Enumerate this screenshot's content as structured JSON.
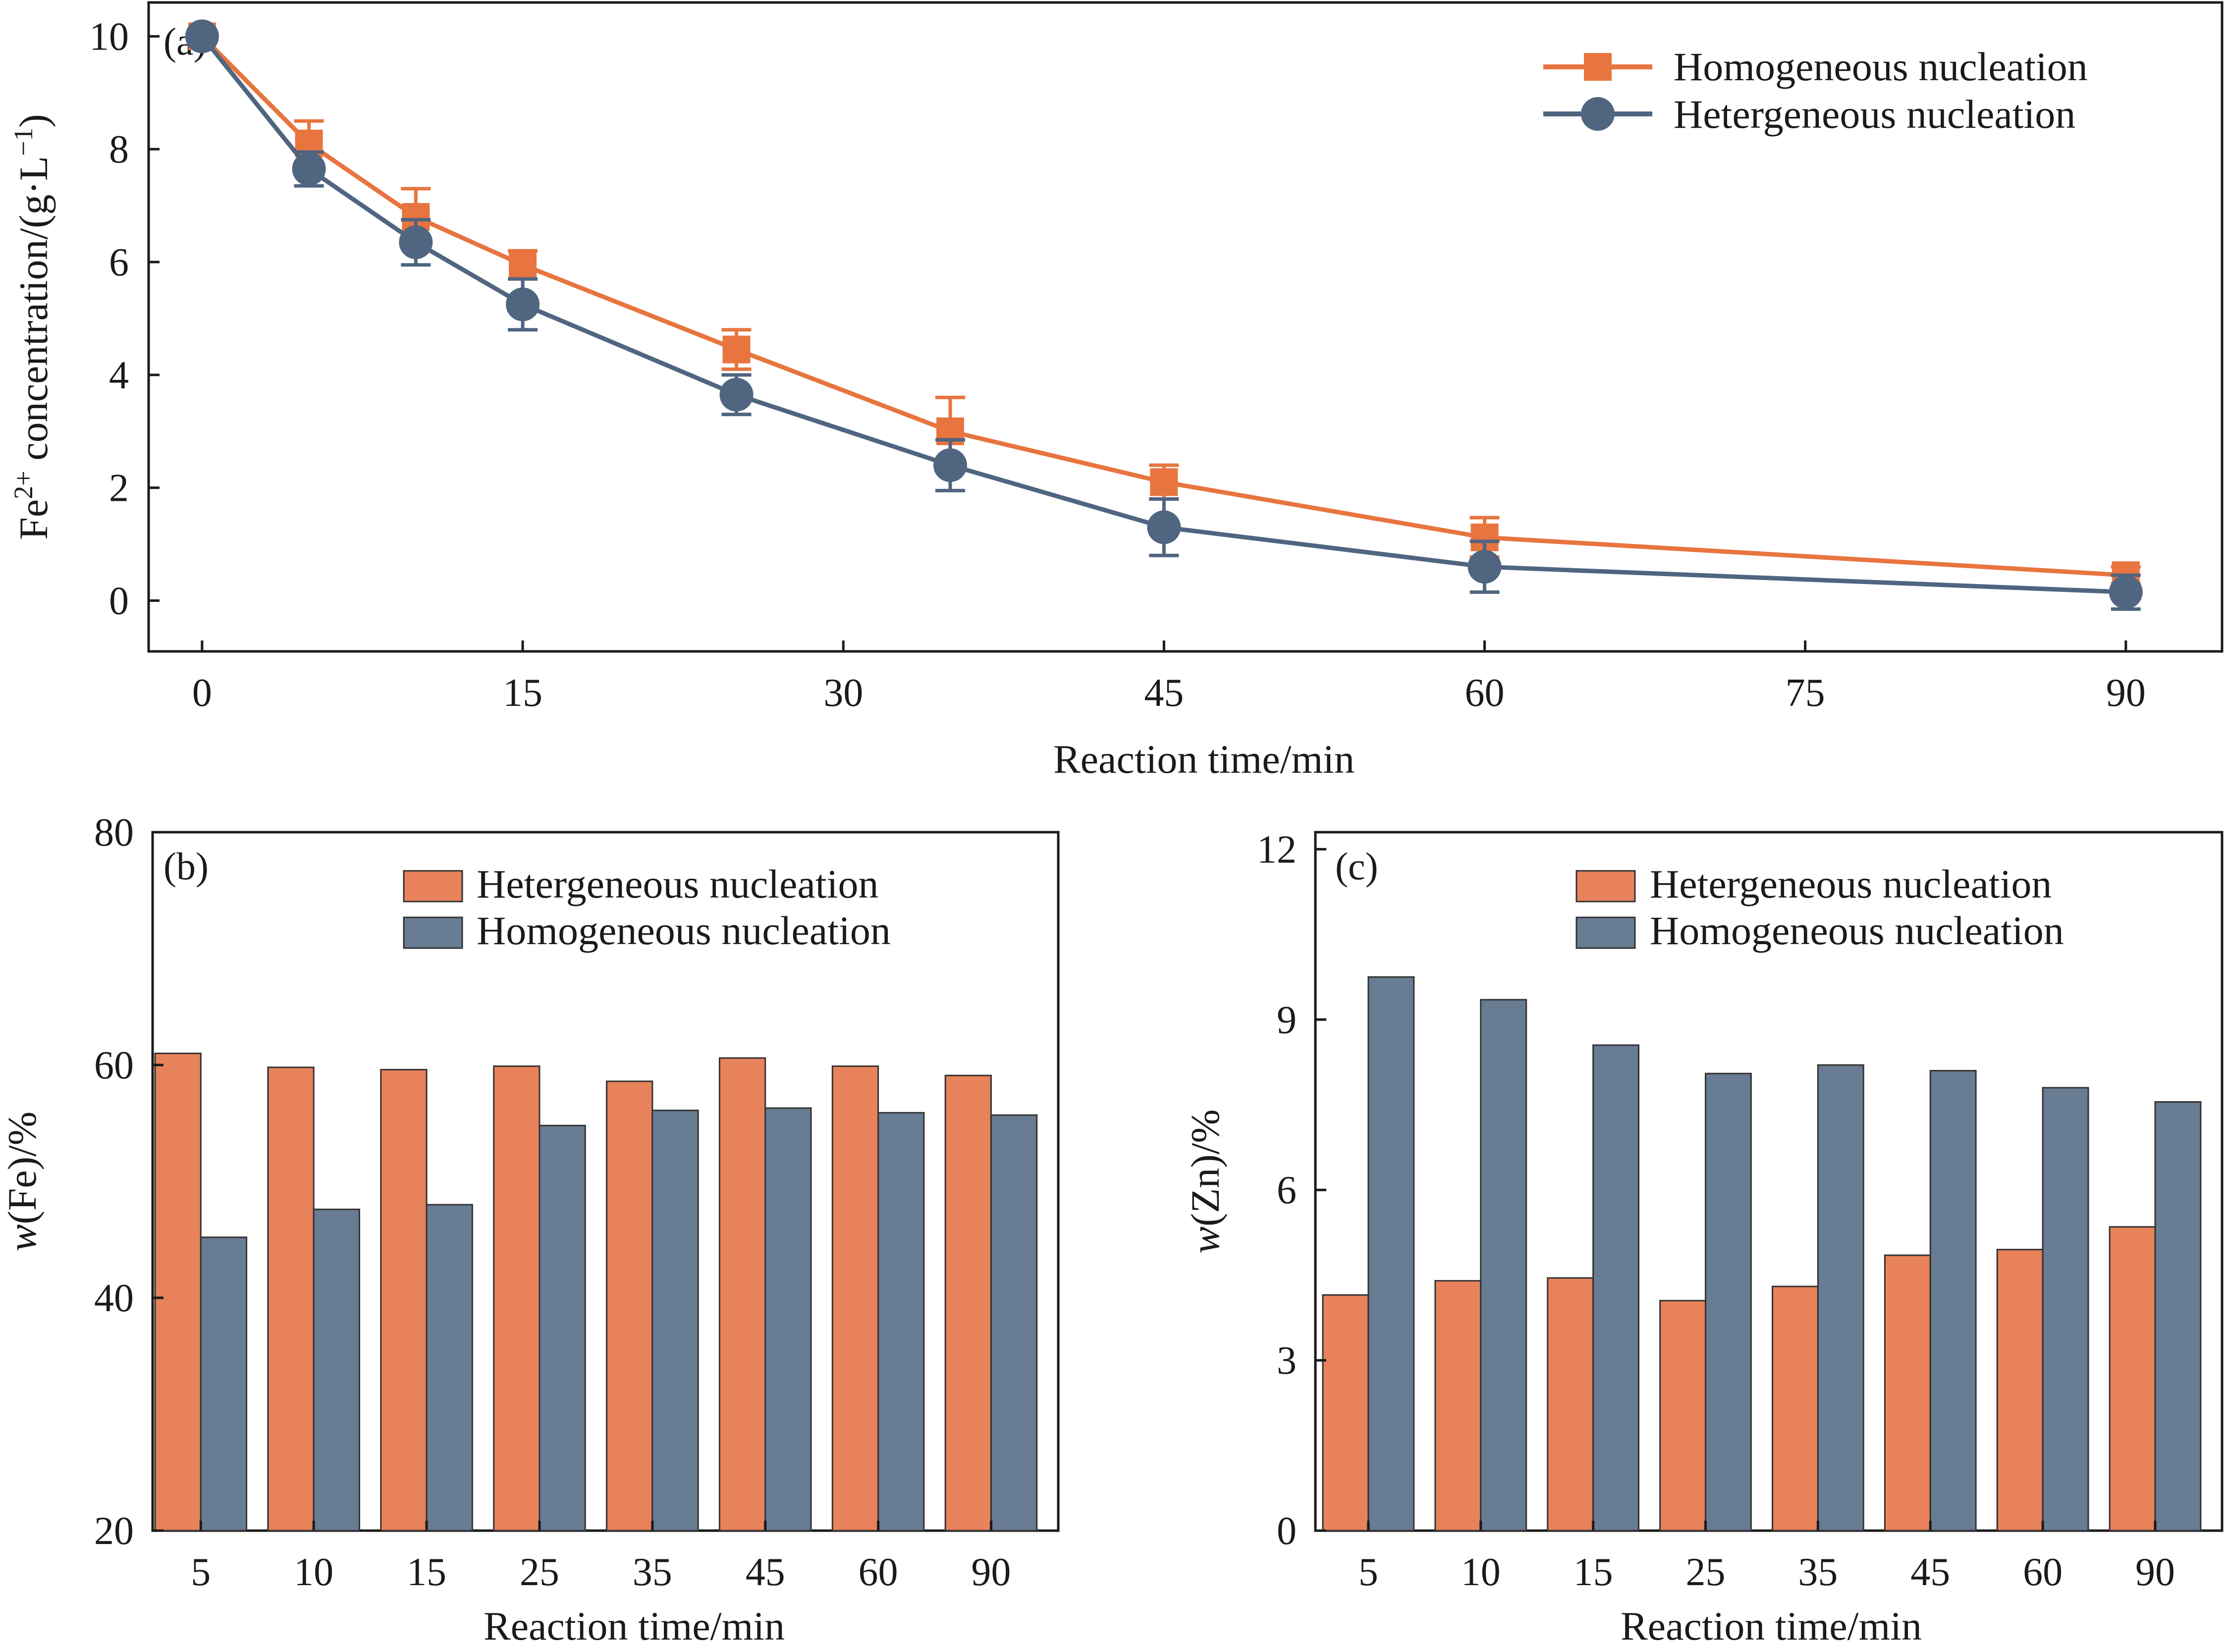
{
  "colors": {
    "orange": "#E8825A",
    "orange_line": "#E8743F",
    "blue": "#687C93",
    "blue_line": "#4F6580",
    "axis": "#1a1a1a"
  },
  "chart_data": [
    {
      "panel": "(a)",
      "type": "line",
      "xlabel": "Reaction time/min",
      "ylabel": "Fe2+ concentration/(g·L−1)",
      "ylabel_parts": {
        "base": "Fe",
        "sup": "2+",
        "mid": " concentration/(g·L",
        "sup2": "−1",
        "end": ")"
      },
      "xlim": [
        -2.5,
        94.5
      ],
      "ylim": [
        -0.9,
        10.6
      ],
      "xticks": [
        0,
        15,
        30,
        45,
        60,
        75,
        90
      ],
      "xtick_labels": [
        "0",
        "15",
        "30",
        "45",
        "60",
        "75",
        "90"
      ],
      "yticks": [
        0,
        2,
        4,
        6,
        8,
        10
      ],
      "ytick_labels": [
        "0",
        "2",
        "4",
        "6",
        "8",
        "10"
      ],
      "legend_position": "top-right",
      "series": [
        {
          "name": "Homogeneous nucleation",
          "marker": "square",
          "color": "#E8743F",
          "x": [
            0,
            5,
            10,
            15,
            25,
            35,
            45,
            60,
            90
          ],
          "y": [
            10.0,
            8.1,
            6.8,
            5.95,
            4.45,
            3.0,
            2.1,
            1.12,
            0.45
          ],
          "err": [
            0.1,
            0.4,
            0.5,
            0.25,
            0.35,
            0.6,
            0.3,
            0.35,
            0.15
          ]
        },
        {
          "name": "Hetergeneous nucleation",
          "marker": "circle",
          "color": "#4F6580",
          "x": [
            0,
            5,
            10,
            15,
            25,
            35,
            45,
            60,
            90
          ],
          "y": [
            10.0,
            7.65,
            6.35,
            5.25,
            3.65,
            2.4,
            1.3,
            0.6,
            0.15
          ],
          "err": [
            0.1,
            0.3,
            0.4,
            0.45,
            0.35,
            0.45,
            0.5,
            0.45,
            0.3
          ]
        }
      ]
    },
    {
      "panel": "(b)",
      "type": "bar",
      "xlabel": "Reaction time/min",
      "ylabel_italic": "w",
      "ylabel_rest": "(Fe)/%",
      "categories": [
        "5",
        "10",
        "15",
        "25",
        "35",
        "45",
        "60",
        "90"
      ],
      "ylim": [
        20,
        80
      ],
      "yticks": [
        20,
        40,
        60,
        80
      ],
      "ytick_labels": [
        "20",
        "40",
        "60",
        "80"
      ],
      "legend_position": "top-center",
      "series": [
        {
          "name": "Hetergeneous nucleation",
          "color": "#E8825A",
          "values": [
            61.0,
            59.8,
            59.6,
            59.9,
            58.6,
            60.6,
            59.9,
            59.1
          ]
        },
        {
          "name": "Homogeneous nucleation",
          "color": "#687C93",
          "values": [
            45.2,
            47.6,
            48.0,
            54.8,
            56.1,
            56.3,
            55.9,
            55.7
          ]
        }
      ]
    },
    {
      "panel": "(c)",
      "type": "bar",
      "xlabel": "Reaction time/min",
      "ylabel_italic": "w",
      "ylabel_rest": "(Zn)/%",
      "categories": [
        "5",
        "10",
        "15",
        "25",
        "35",
        "45",
        "60",
        "90"
      ],
      "ylim": [
        0,
        12.3
      ],
      "yticks": [
        0,
        3,
        6,
        9,
        12
      ],
      "ytick_labels": [
        "0",
        "3",
        "6",
        "9",
        "12"
      ],
      "legend_position": "top-center",
      "series": [
        {
          "name": "Hetergeneous nucleation",
          "color": "#E8825A",
          "values": [
            4.15,
            4.4,
            4.45,
            4.05,
            4.3,
            4.85,
            4.95,
            5.35
          ]
        },
        {
          "name": "Homogeneous nucleation",
          "color": "#687C93",
          "values": [
            9.75,
            9.35,
            8.55,
            8.05,
            8.2,
            8.1,
            7.8,
            7.55
          ]
        }
      ]
    }
  ]
}
